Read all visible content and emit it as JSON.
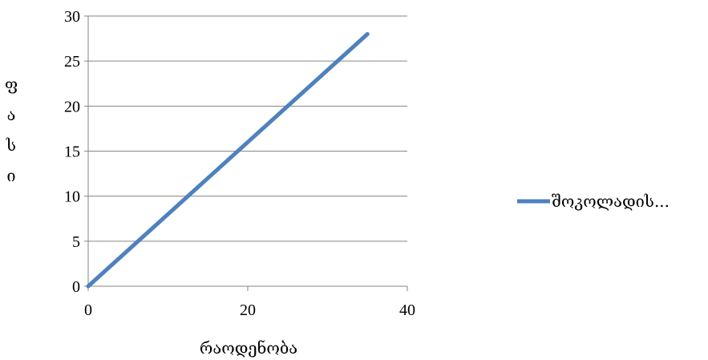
{
  "chart_data": {
    "type": "line",
    "xlabel": "რაოდენობა",
    "ylabel": "ფასი",
    "xlim": [
      0,
      40
    ],
    "ylim": [
      0,
      30
    ],
    "x_ticks": [
      0,
      20,
      40
    ],
    "y_ticks": [
      0,
      5,
      10,
      15,
      20,
      25,
      30
    ],
    "grid": "horizontal",
    "legend_position": "right",
    "series": [
      {
        "name": "შოკოლადის...",
        "color": "#4f81bd",
        "x": [
          0,
          35
        ],
        "y": [
          0,
          28
        ]
      }
    ]
  }
}
